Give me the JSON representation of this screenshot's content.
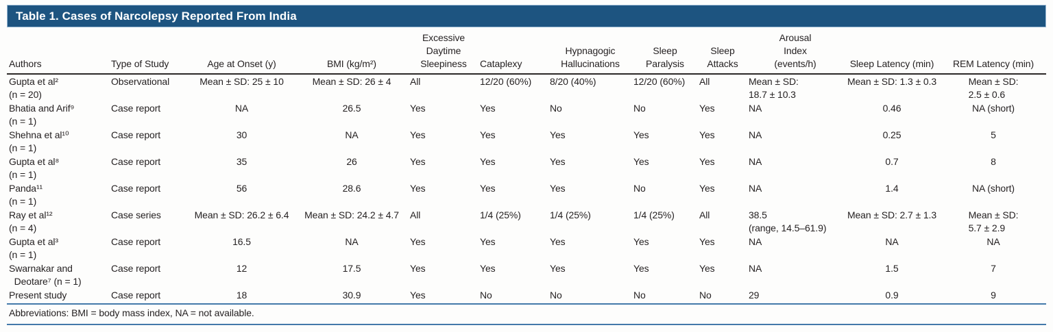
{
  "title": "Table 1. Cases of Narcolepsy Reported From India",
  "table": {
    "columns": [
      "Authors",
      "Type of Study",
      "Age at Onset (y)",
      "BMI (kg/m²)",
      "Excessive\nDaytime\nSleepiness",
      "Cataplexy",
      "Hypnagogic\nHallucinations",
      "Sleep\nParalysis",
      "Sleep\nAttacks",
      "Arousal\nIndex\n(events/h)",
      "Sleep Latency (min)",
      "REM Latency (min)"
    ],
    "rows": [
      [
        "Gupta et al²\n(n = 20)",
        "Observational",
        "Mean ± SD: 25 ± 10",
        "Mean ± SD: 26 ± 4",
        "All",
        "12/20 (60%)",
        "8/20 (40%)",
        "12/20 (60%)",
        "All",
        "Mean ± SD:\n18.7 ± 10.3",
        "Mean ± SD: 1.3 ± 0.3",
        "Mean ± SD:\n2.5 ± 0.6"
      ],
      [
        "Bhatia and Arif⁹\n(n = 1)",
        "Case report",
        "NA",
        "26.5",
        "Yes",
        "Yes",
        "No",
        "No",
        "Yes",
        "NA",
        "0.46",
        "NA (short)"
      ],
      [
        "Shehna et al¹⁰\n(n = 1)",
        "Case report",
        "30",
        "NA",
        "Yes",
        "Yes",
        "Yes",
        "Yes",
        "Yes",
        "NA",
        "0.25",
        "5"
      ],
      [
        "Gupta et al⁸\n(n = 1)",
        "Case report",
        "35",
        "26",
        "Yes",
        "Yes",
        "Yes",
        "Yes",
        "Yes",
        "NA",
        "0.7",
        "8"
      ],
      [
        "Panda¹¹\n(n = 1)",
        "Case report",
        "56",
        "28.6",
        "Yes",
        "Yes",
        "Yes",
        "No",
        "Yes",
        "NA",
        "1.4",
        "NA (short)"
      ],
      [
        "Ray et al¹²\n(n = 4)",
        "Case series",
        "Mean ± SD: 26.2 ± 6.4",
        "Mean ± SD: 24.2 ± 4.7",
        "All",
        "1/4 (25%)",
        "1/4 (25%)",
        "1/4 (25%)",
        "All",
        "38.5\n(range, 14.5–61.9)",
        "Mean ± SD: 2.7 ± 1.3",
        "Mean ± SD:\n5.7 ± 2.9"
      ],
      [
        "Gupta et al³\n(n = 1)",
        "Case report",
        "16.5",
        "NA",
        "Yes",
        "Yes",
        "Yes",
        "Yes",
        "Yes",
        "NA",
        "NA",
        "NA"
      ],
      [
        "Swarnakar and\n  Deotare⁷ (n = 1)",
        "Case report",
        "12",
        "17.5",
        "Yes",
        "Yes",
        "Yes",
        "Yes",
        "Yes",
        "NA",
        "1.5",
        "7"
      ],
      [
        "Present study",
        "Case report",
        "18",
        "30.9",
        "Yes",
        "No",
        "No",
        "No",
        "No",
        "29",
        "0.9",
        "9"
      ]
    ]
  },
  "footnote": "Abbreviations: BMI = body mass index, NA = not available.",
  "colors": {
    "title_bar_bg": "#1d5480",
    "title_text": "#ffffff",
    "header_rule": "#2b2726",
    "footer_rule": "#4379aa",
    "body_text": "#231f20"
  }
}
